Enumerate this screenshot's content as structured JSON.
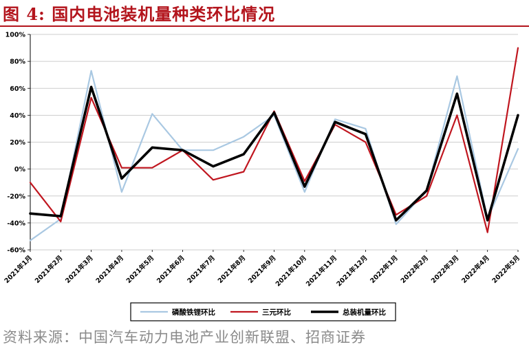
{
  "figure": {
    "title": "图 4:  国内电池装机量种类环比情况",
    "source": "资料来源：中国汽车动力电池产业创新联盟、招商证券"
  },
  "chart_data": {
    "type": "line",
    "categories": [
      "2021年1月",
      "2021年2月",
      "2021年3月",
      "2021年4月",
      "2021年5月",
      "2021年6月",
      "2021年7月",
      "2021年8月",
      "2021年9月",
      "2021年10月",
      "2021年11月",
      "2021年12月",
      "2022年1月",
      "2022年2月",
      "2022年3月",
      "2022年4月",
      "2022年5月"
    ],
    "ylim": [
      -60,
      100
    ],
    "yticks": [
      -60,
      -40,
      -20,
      0,
      20,
      40,
      60,
      80,
      100
    ],
    "ytick_labels": [
      "-60%",
      "-40%",
      "-20%",
      "0%",
      "20%",
      "40%",
      "60%",
      "80%",
      "100%"
    ],
    "grid": true,
    "legend_position": "bottom",
    "series": [
      {
        "name": "磷酸铁锂环比",
        "color": "#a9c8e2",
        "width": 2.2,
        "values": [
          -53,
          -37,
          73,
          -17,
          41,
          14,
          14,
          24,
          40,
          -17,
          37,
          30,
          -41,
          -16,
          69,
          -37,
          15
        ]
      },
      {
        "name": "三元环比",
        "color": "#c0161f",
        "width": 2.2,
        "values": [
          -10,
          -39,
          53,
          1,
          1,
          14,
          -8,
          -2,
          43,
          -9,
          33,
          20,
          -34,
          -20,
          40,
          -47,
          90
        ]
      },
      {
        "name": "总装机量环比",
        "color": "#000000",
        "width": 3.6,
        "values": [
          -33,
          -35,
          61,
          -7,
          16,
          14,
          2,
          11,
          42,
          -13,
          35,
          26,
          -38,
          -16,
          56,
          -38,
          40
        ]
      }
    ]
  }
}
